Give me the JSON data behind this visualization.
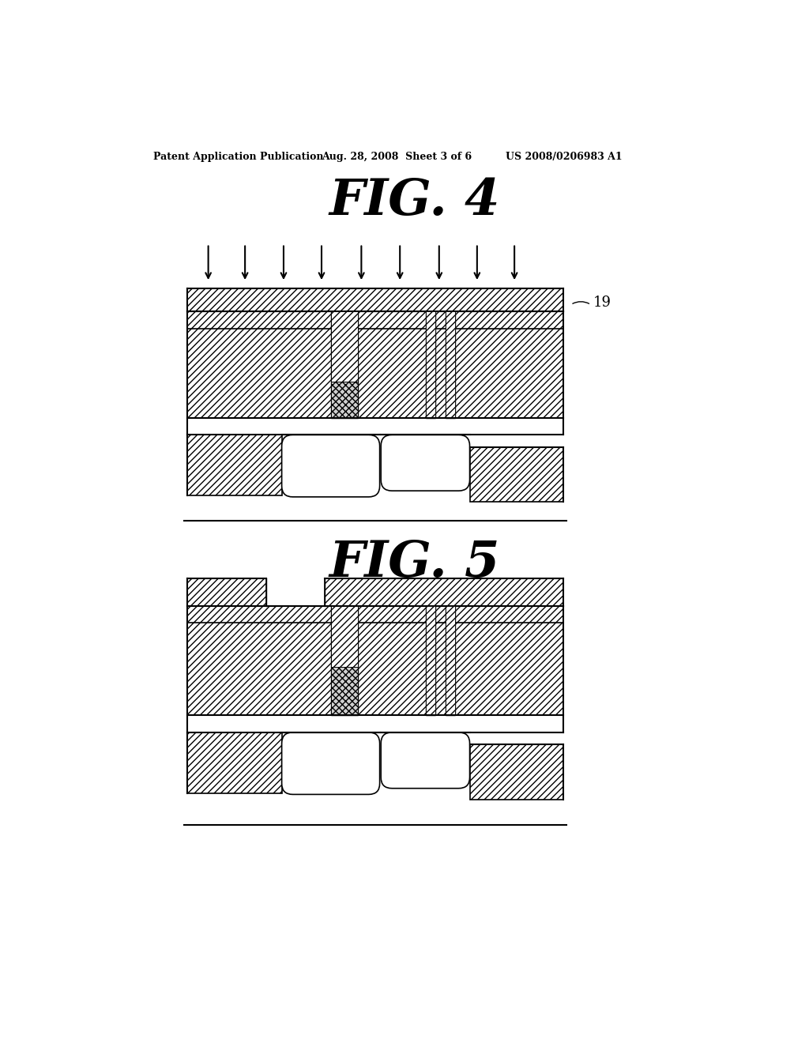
{
  "title1": "FIG. 4",
  "title2": "FIG. 5",
  "header_left": "Patent Application Publication",
  "header_mid": "Aug. 28, 2008  Sheet 3 of 6",
  "header_right": "US 2008/0206983 A1",
  "label_19": "19",
  "bg_color": "#ffffff"
}
